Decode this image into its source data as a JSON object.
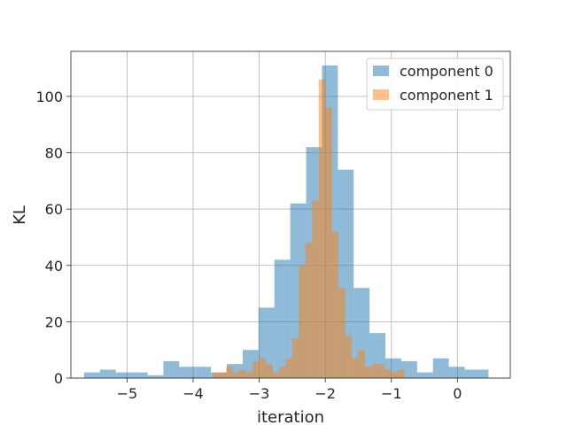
{
  "chart_data": {
    "type": "histogram",
    "title": "",
    "xlabel": "iteration",
    "ylabel": "KL",
    "xlim": [
      -5.85,
      0.8
    ],
    "ylim": [
      0,
      116
    ],
    "xticks": [
      -5,
      -4,
      -3,
      -2,
      -1,
      0
    ],
    "xtick_labels": [
      "−5",
      "−4",
      "−3",
      "−2",
      "−1",
      "0"
    ],
    "yticks": [
      0,
      20,
      40,
      60,
      80,
      100
    ],
    "ytick_labels": [
      "0",
      "20",
      "40",
      "60",
      "80",
      "100"
    ],
    "grid": true,
    "legend_position": "top-right",
    "series": [
      {
        "name": "component 0",
        "color": "#1f77b4",
        "alpha": 0.5,
        "bin_edges": [
          -5.65,
          -5.41,
          -5.17,
          -4.93,
          -4.69,
          -4.45,
          -4.21,
          -3.97,
          -3.73,
          -3.49,
          -3.25,
          -3.01,
          -2.77,
          -2.53,
          -2.29,
          -2.05,
          -1.81,
          -1.57,
          -1.33,
          -1.09,
          -0.85,
          -0.61,
          -0.37,
          -0.13,
          0.11,
          0.35,
          0.47
        ],
        "counts": [
          2,
          3,
          2,
          2,
          1,
          6,
          4,
          4,
          2,
          5,
          10,
          25,
          42,
          62,
          82,
          111,
          74,
          32,
          16,
          7,
          6,
          2,
          7,
          4,
          3,
          3
        ]
      },
      {
        "name": "component 1",
        "color": "#ff7f0e",
        "alpha": 0.5,
        "bin_edges": [
          -3.7,
          -3.6,
          -3.5,
          -3.4,
          -3.3,
          -3.2,
          -3.1,
          -3.0,
          -2.9,
          -2.8,
          -2.7,
          -2.6,
          -2.5,
          -2.4,
          -2.3,
          -2.2,
          -2.1,
          -2.0,
          -1.9,
          -1.8,
          -1.7,
          -1.6,
          -1.5,
          -1.4,
          -1.3,
          -1.2,
          -1.1,
          -1.0,
          -0.9,
          -0.8,
          -0.7,
          -0.6,
          -0.5,
          -0.4,
          -0.3,
          -0.2,
          -0.1
        ],
        "counts": [
          2,
          2,
          4,
          2,
          3,
          2,
          6,
          7,
          5,
          2,
          4,
          7,
          14,
          40,
          48,
          63,
          106,
          96,
          52,
          32,
          15,
          7,
          10,
          4,
          5,
          5,
          3,
          2,
          3,
          0,
          0,
          0,
          0,
          0,
          0,
          0
        ]
      }
    ]
  }
}
